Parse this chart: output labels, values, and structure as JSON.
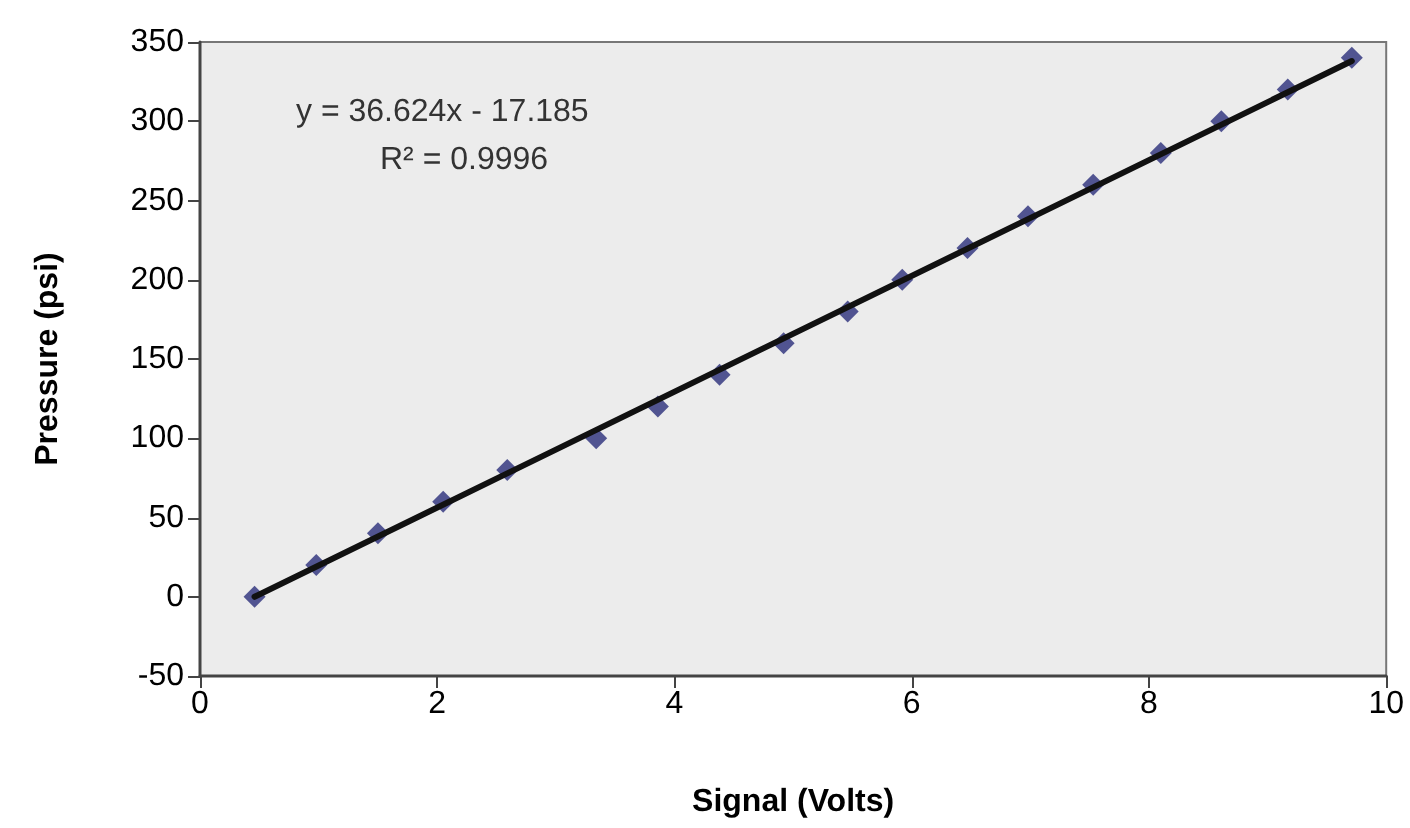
{
  "chart_data": {
    "type": "scatter",
    "xlabel": "Signal (Volts)",
    "ylabel": "Pressure (psi)",
    "annotations": [
      "y = 36.624x - 17.185",
      "R² = 0.9996"
    ],
    "xlim": [
      0,
      10
    ],
    "xticks": [
      0,
      2,
      4,
      6,
      8,
      10
    ],
    "ylim": [
      -50,
      350
    ],
    "yticks": [
      -50,
      0,
      50,
      100,
      150,
      200,
      250,
      300,
      350
    ],
    "grid": false,
    "marker": "diamond",
    "series": [
      {
        "color": "#2b2e7a",
        "x": [
          0.46,
          0.98,
          1.5,
          2.05,
          2.59,
          3.34,
          3.86,
          4.38,
          4.92,
          5.46,
          5.92,
          6.47,
          6.98,
          7.53,
          8.1,
          8.61,
          9.17,
          9.71
        ],
        "values": [
          0,
          20,
          40,
          60,
          80,
          100,
          120,
          140,
          160,
          180,
          200,
          220,
          240,
          260,
          280,
          300,
          320,
          340
        ]
      },
      {
        "type": "line",
        "color": "#111111",
        "line_style": "solid",
        "marker": "none",
        "x": [
          0.46,
          9.71
        ],
        "values": [
          0,
          338
        ]
      }
    ]
  }
}
